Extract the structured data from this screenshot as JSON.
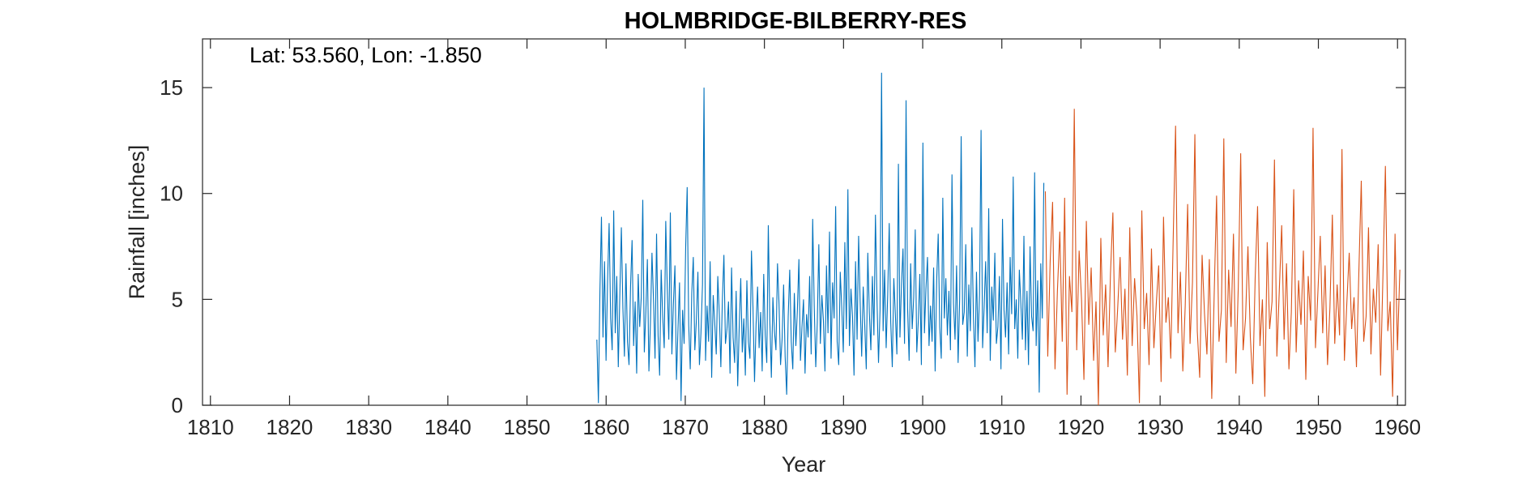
{
  "chart_data": {
    "type": "line",
    "title": "HOLMBRIDGE-BILBERRY-RES",
    "xlabel": "Year",
    "ylabel": "Rainfall [inches]",
    "annotation": "Lat: 53.560, Lon: -1.850",
    "xlim": [
      1809,
      1961
    ],
    "ylim": [
      0,
      17.3
    ],
    "xticks": [
      1810,
      1820,
      1830,
      1840,
      1850,
      1860,
      1870,
      1880,
      1890,
      1900,
      1910,
      1920,
      1930,
      1940,
      1950,
      1960
    ],
    "yticks": [
      0,
      5,
      10,
      15
    ],
    "grid": false,
    "series": [
      {
        "color": "#0072BD",
        "x_start": 1858.83,
        "x_step": 0.08333,
        "values": [
          3.1,
          0.1,
          5.4,
          8.9,
          3.2,
          6.8,
          2.1,
          5.9,
          8.6,
          4.1,
          2.6,
          9.2,
          3.4,
          6.1,
          1.8,
          5.2,
          8.4,
          4.6,
          2.3,
          6.7,
          3.0,
          1.9,
          5.6,
          7.8,
          2.8,
          4.9,
          1.5,
          6.2,
          3.7,
          5.1,
          9.7,
          2.5,
          4.4,
          6.9,
          1.6,
          3.9,
          7.2,
          5.0,
          2.2,
          8.1,
          3.3,
          1.4,
          6.4,
          4.2,
          2.7,
          8.7,
          5.5,
          3.1,
          9.1,
          2.4,
          4.8,
          6.6,
          1.2,
          3.6,
          5.8,
          0.2,
          4.5,
          2.9,
          7.4,
          10.3,
          3.8,
          1.7,
          5.3,
          7.0,
          2.6,
          4.0,
          6.3,
          1.9,
          3.4,
          5.7,
          15.0,
          2.1,
          4.7,
          3.0,
          6.8,
          1.3,
          5.2,
          3.9,
          2.4,
          6.1,
          4.3,
          1.8,
          5.0,
          7.1,
          2.9,
          3.6,
          4.9,
          1.5,
          6.5,
          3.2,
          2.0,
          5.4,
          0.9,
          3.7,
          6.0,
          2.5,
          4.1,
          1.4,
          5.9,
          3.0,
          2.2,
          7.3,
          4.6,
          1.1,
          3.8,
          5.6,
          2.7,
          4.4,
          1.6,
          6.2,
          3.3,
          2.0,
          8.5,
          4.0,
          1.3,
          5.1,
          3.5,
          2.6,
          6.7,
          4.8,
          1.9,
          3.1,
          5.7,
          2.3,
          0.5,
          4.2,
          6.4,
          3.0,
          1.7,
          5.3,
          2.8,
          4.5,
          6.9,
          2.1,
          3.7,
          5.0,
          1.5,
          4.3,
          3.2,
          6.1,
          2.4,
          8.8,
          4.7,
          1.8,
          3.9,
          7.6,
          2.9,
          5.2,
          4.0,
          1.6,
          6.6,
          3.4,
          8.2,
          2.2,
          5.8,
          4.1,
          9.4,
          3.0,
          1.9,
          6.3,
          4.6,
          2.5,
          7.7,
          3.6,
          10.2,
          2.8,
          5.5,
          4.2,
          1.4,
          6.8,
          3.1,
          8.0,
          4.9,
          2.3,
          5.6,
          3.8,
          1.7,
          7.2,
          4.4,
          2.6,
          6.1,
          3.3,
          9.0,
          5.0,
          2.0,
          4.5,
          15.7,
          3.5,
          6.4,
          2.7,
          5.2,
          8.6,
          3.9,
          1.8,
          6.0,
          4.3,
          2.4,
          11.4,
          3.2,
          5.7,
          7.4,
          2.9,
          14.4,
          4.6,
          2.1,
          6.7,
          3.6,
          5.1,
          8.3,
          2.5,
          4.0,
          6.2,
          1.9,
          12.4,
          3.4,
          5.5,
          7.0,
          2.8,
          4.7,
          3.0,
          6.5,
          1.6,
          5.9,
          8.1,
          3.7,
          2.2,
          9.8,
          4.1,
          6.0,
          3.3,
          5.4,
          2.6,
          10.9,
          4.8,
          3.1,
          6.6,
          2.0,
          5.0,
          12.7,
          3.8,
          4.4,
          7.6,
          2.3,
          5.7,
          3.5,
          8.4,
          4.2,
          1.8,
          6.3,
          3.0,
          5.2,
          13.0,
          2.7,
          4.6,
          6.8,
          3.4,
          9.3,
          2.1,
          5.6,
          4.0,
          7.2,
          2.9,
          3.7,
          6.1,
          1.7,
          8.8,
          4.5,
          3.2,
          5.8,
          2.4,
          7.0,
          4.3,
          10.8,
          3.6,
          5.0,
          2.2,
          6.4,
          4.8,
          3.1,
          8.0,
          2.6,
          5.4,
          1.9,
          7.5,
          4.2,
          3.5,
          11.0,
          2.8,
          5.9,
          0.6,
          6.7,
          4.1,
          10.5
        ],
        "sparse": true
      },
      {
        "color": "#D95319",
        "x_start": 1915.5,
        "x_step": 0.08333,
        "values": [
          10.1,
          2.3,
          6.8,
          9.6,
          1.7,
          5.4,
          8.2,
          3.0,
          9.8,
          0.5,
          6.1,
          4.4,
          14.0,
          2.6,
          7.3,
          5.0,
          1.2,
          8.7,
          3.8,
          6.5,
          2.1,
          4.9,
          0.0,
          7.9,
          3.3,
          5.7,
          1.8,
          6.2,
          9.1,
          2.5,
          4.6,
          7.0,
          3.1,
          5.5,
          1.4,
          8.4,
          2.8,
          6.0,
          4.2,
          0.1,
          9.2,
          3.6,
          5.3,
          1.9,
          7.4,
          2.7,
          4.8,
          6.6,
          1.1,
          8.9,
          3.9,
          5.1,
          2.2,
          7.8,
          13.2,
          3.4,
          6.3,
          1.6,
          4.7,
          9.5,
          2.9,
          5.8,
          12.8,
          3.5,
          1.3,
          7.1,
          4.3,
          2.4,
          6.9,
          0.3,
          5.2,
          9.9,
          3.0,
          4.5,
          12.6,
          2.0,
          6.4,
          3.7,
          8.1,
          1.5,
          5.6,
          11.9,
          2.6,
          4.1,
          7.5,
          3.2,
          1.0,
          6.0,
          9.4,
          2.8,
          5.0,
          0.4,
          7.7,
          3.6,
          4.9,
          11.6,
          2.3,
          5.4,
          8.5,
          3.1,
          6.7,
          1.7,
          4.4,
          10.2,
          2.5,
          5.9,
          3.8,
          7.3,
          1.2,
          6.1,
          4.0,
          13.1,
          2.7,
          5.3,
          8.0,
          3.4,
          6.6,
          1.9,
          4.6,
          9.0,
          2.9,
          5.7,
          3.3,
          12.1,
          2.1,
          4.8,
          7.2,
          3.6,
          5.1,
          1.8,
          6.3,
          10.6,
          3.0,
          4.2,
          8.4,
          2.4,
          5.5,
          3.9,
          7.6,
          1.4,
          6.2,
          11.3,
          3.5,
          4.9,
          0.4,
          8.1,
          2.6,
          6.4
        ]
      }
    ]
  }
}
